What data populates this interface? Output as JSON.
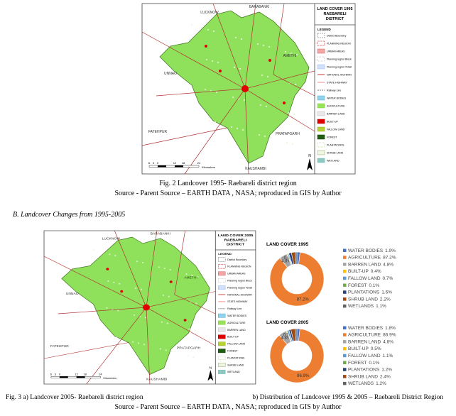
{
  "maps": [
    {
      "title_lines": [
        "LAND COVER 1995",
        "RAEBARELI",
        "DISTRICT"
      ],
      "legend_title": "LEGEND",
      "legend_items": [
        "District Boundary",
        "PLANNING REGION",
        "URBAN AREAS",
        "Planning region Block",
        "Planning region Tehsil",
        "NATIONAL HIGHWAY",
        "STATE HIGHWAY",
        "Railway Line",
        "WATER BODIES",
        "AGRICULTURE",
        "BARREN LAND",
        "BUILT-UP",
        "FALLOW LAND",
        "FOREST",
        "PLANTATIONS",
        "SHRUB LAND",
        "WETLAND"
      ],
      "place_labels": [
        "LUCKNOW",
        "BARABANKI",
        "UNNAO",
        "AMETHI",
        "FATEHPUR",
        "PRATAPGARH",
        "KAUSHAMBI"
      ],
      "scale_labels": [
        "6",
        "3",
        "0",
        "12",
        "18",
        "24"
      ],
      "scale_unit": "Kilometers",
      "north": "N"
    },
    {
      "title_lines": [
        "LAND COVER 2005",
        "RAEBARELI",
        "DISTRICT"
      ],
      "legend_title": "LEGEND",
      "legend_items": [
        "District Boundary",
        "PLANNING REGION",
        "URBAN AREAS",
        "Planning region Block",
        "Planning region Tehsil",
        "NATIONAL HIGHWAY",
        "STATE HIGHWAY",
        "Railway Line",
        "WATER BODIES",
        "AGRICULTURE",
        "BARREN LAND",
        "BUILT-UP",
        "FALLOW LAND",
        "FOREST",
        "PLANTATIONS",
        "SHRUB LAND",
        "WETLAND"
      ],
      "place_labels": [
        "LUCKNOW",
        "BARABANKI",
        "UNNAO",
        "AMETHI",
        "FATEHPUR",
        "PRATAPGARH",
        "KAUSHAMBI"
      ],
      "scale_labels": [
        "6",
        "3",
        "0",
        "12",
        "18",
        "24"
      ],
      "scale_unit": "Kilometers",
      "north": "N"
    }
  ],
  "figure1_caption": "Fig. 2 Landcover 1995- Raebareli district region",
  "figure1_source": "Source - Parent Source – EARTH DATA , NASA; reproduced in GIS by Author",
  "section_heading": "B.  Landcover Changes from 1995-2005",
  "figure2_caption_a": "Fig. 3 a) Landcover 2005- Raebareli district region",
  "figure2_caption_b": "b) Distribution of Landcover 1995 & 2005 – Raebareli District Region",
  "figure2_source": "Source - Parent Source – EARTH DATA , NASA; reproduced in GIS by Author",
  "chart_data": [
    {
      "type": "pie",
      "title": "LAND COVER 1995",
      "categories": [
        "WATER BODIES",
        "AGRICULTURE",
        "BARREN LAND",
        "BUILT-UP",
        "FALLOW LAND",
        "FOREST",
        "PLANTATIONS",
        "SHRUB LAND",
        "WETLANDS"
      ],
      "values": [
        1.9,
        87.2,
        4.8,
        0.4,
        0.7,
        0.1,
        1.6,
        2.2,
        1.1
      ],
      "value_labels": [
        "1.9%",
        "87.2%",
        "4.8%",
        "0.4%",
        "0.7%",
        "0.1%",
        "1.6%",
        "2.2%",
        "1.1%"
      ],
      "colors": [
        "#4472c4",
        "#ed7d31",
        "#a5a5a5",
        "#ffc000",
        "#5b9bd5",
        "#70ad47",
        "#264478",
        "#9e480e",
        "#636363"
      ]
    },
    {
      "type": "pie",
      "title": "LAND COVER 2005",
      "categories": [
        "WATER BODIES",
        "AGRICULTURE",
        "BARREN LAND",
        "BUILT-UP",
        "FALLOW LAND",
        "FOREST",
        "PLANTATIONS",
        "SHRUB LAND",
        "WETLANDS"
      ],
      "values": [
        1.8,
        86.9,
        4.8,
        0.5,
        1.1,
        0.1,
        1.2,
        2.4,
        1.2
      ],
      "value_labels": [
        "1.8%",
        "86.9%",
        "4.8%",
        "0.5%",
        "1.1%",
        "0.1%",
        "1.2%",
        "2.4%",
        "1.2%"
      ],
      "colors": [
        "#4472c4",
        "#ed7d31",
        "#a5a5a5",
        "#ffc000",
        "#5b9bd5",
        "#70ad47",
        "#264478",
        "#9e480e",
        "#636363"
      ]
    }
  ]
}
